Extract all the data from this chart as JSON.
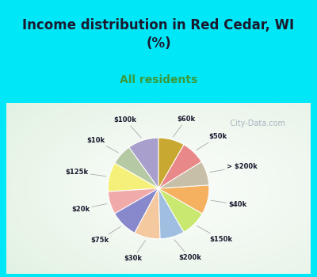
{
  "title": "Income distribution in Red Cedar, WI\n(%)",
  "subtitle": "All residents",
  "labels": [
    "$100k",
    "$10k",
    "$125k",
    "$20k",
    "$75k",
    "$30k",
    "$200k",
    "$150k",
    "$40k",
    "> $200k",
    "$50k",
    "$60k"
  ],
  "values": [
    9.5,
    6.5,
    9.0,
    7.0,
    8.5,
    8.0,
    7.5,
    8.0,
    9.0,
    7.5,
    7.5,
    8.0
  ],
  "colors": [
    "#a89fcc",
    "#b5c9a5",
    "#f5f07a",
    "#f0aaaa",
    "#8888cc",
    "#f5c9a0",
    "#a0bfe0",
    "#c8e870",
    "#f5b060",
    "#c8bfa8",
    "#e88888",
    "#c8a830"
  ],
  "bg_cyan": "#00e8f8",
  "title_color": "#1a1a2e",
  "subtitle_color": "#3a9a3a",
  "label_color": "#1a1a2e",
  "startangle": 90,
  "watermark": "  City-Data.com"
}
